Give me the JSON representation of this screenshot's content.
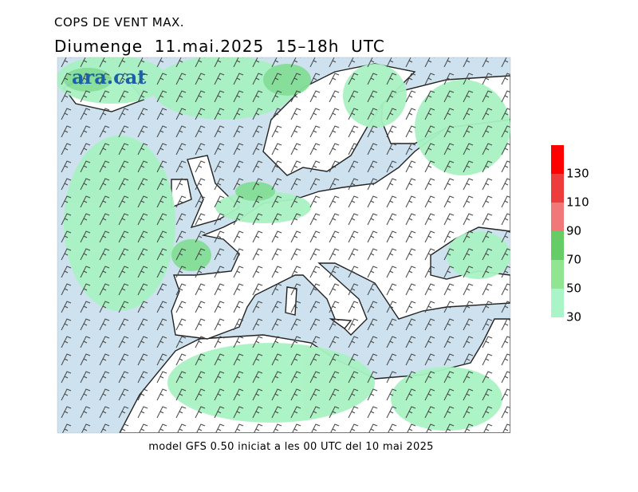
{
  "header": {
    "title": "COPS DE VENT MAX.",
    "subtitle": "Diumenge  11.mai.2025  15–18h  UTC"
  },
  "logo": "ara.cat",
  "footer": "model GFS 0.50 iniciat a les 00 UTC del 10 mai 2025",
  "legend": {
    "levels": [
      30,
      50,
      70,
      90,
      110,
      130
    ],
    "colors": [
      "#aaf5c8",
      "#90e690",
      "#66cc66",
      "#f07878",
      "#ee3c3c",
      "#ff0000"
    ]
  }
}
